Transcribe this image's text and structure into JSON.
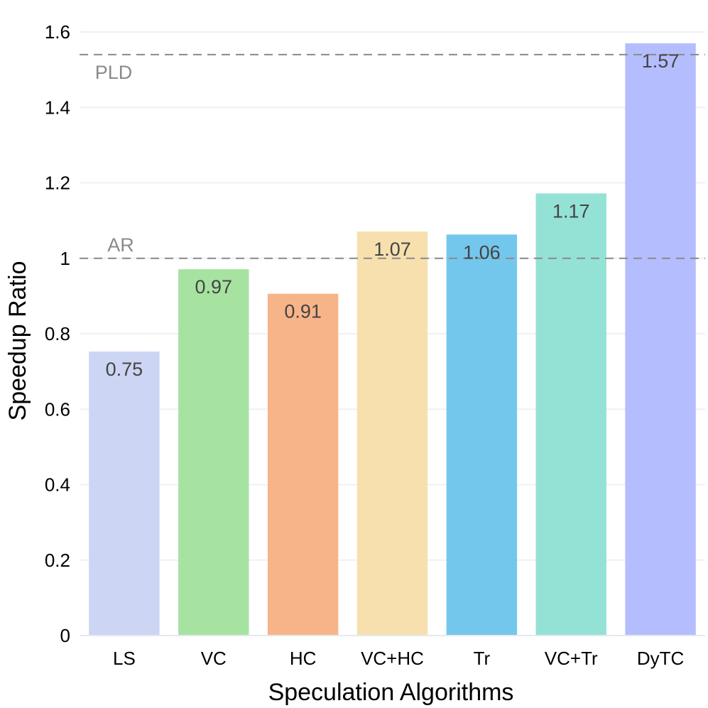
{
  "chart_data": {
    "type": "bar",
    "title": "",
    "xlabel": "Speculation Algorithms",
    "ylabel": "Speedup Ratio",
    "categories": [
      "LS",
      "VC",
      "HC",
      "VC+HC",
      "Tr",
      "VC+Tr",
      "DyTC"
    ],
    "values": [
      0.753,
      0.971,
      0.906,
      1.071,
      1.063,
      1.172,
      1.57
    ],
    "data_labels": [
      "0.75",
      "0.97",
      "0.91",
      "1.07",
      "1.06",
      "1.17",
      "1.57"
    ],
    "colors": [
      "#cdd5f4",
      "#a6e3a1",
      "#f8b489",
      "#f7e0ae",
      "#74c7ec",
      "#94e2d5",
      "#b4befe"
    ],
    "ylim": [
      0,
      1.6
    ],
    "yticks": [
      0,
      0.2,
      0.4,
      0.6,
      0.8,
      1,
      1.2,
      1.4,
      1.6
    ],
    "ytick_labels": [
      "0",
      "0.2",
      "0.4",
      "0.6",
      "0.8",
      "1",
      "1.2",
      "1.4",
      "1.6"
    ],
    "grid": true,
    "legend": "none",
    "reference_lines": [
      {
        "label": "PLD",
        "value": 1.54,
        "style": "dashed",
        "color": "#8a8a8a"
      },
      {
        "label": "AR",
        "value": 1.0,
        "style": "dashed",
        "color": "#8a8a8a"
      }
    ]
  }
}
